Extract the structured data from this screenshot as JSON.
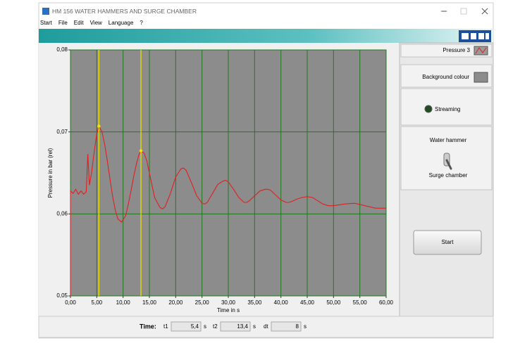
{
  "window": {
    "title": "HM 156 WATER HAMMERS AND SURGE CHAMBER"
  },
  "menu": [
    "Start",
    "File",
    "Edit",
    "View",
    "Language",
    "?"
  ],
  "chart_data": {
    "type": "line",
    "xlabel": "Time in s",
    "ylabel": "Pressure in bar (rel)",
    "x": [
      0,
      0,
      0.5,
      1,
      1.5,
      2,
      2.5,
      3,
      3.3,
      3.6,
      4,
      4.5,
      5,
      5.4,
      6,
      6.5,
      7,
      7.5,
      8,
      8.5,
      9,
      9.7,
      10.5,
      11,
      11.5,
      12,
      12.5,
      13,
      13.4,
      14,
      14.5,
      15,
      15.5,
      16,
      17,
      17.5,
      18,
      19,
      20,
      21,
      21.5,
      22,
      23,
      24,
      25,
      25.5,
      26,
      27,
      28,
      29,
      29.5,
      30,
      31,
      32,
      33,
      33.5,
      34,
      35,
      36,
      37,
      37.5,
      38,
      39,
      40,
      41,
      41.5,
      42,
      43,
      44,
      45,
      46,
      47,
      48,
      49,
      50,
      52,
      54,
      56,
      58,
      60
    ],
    "series": [
      {
        "name": "Pressure 3",
        "color": "#e02020",
        "values": [
          0.05,
          0.0628,
          0.0625,
          0.063,
          0.0624,
          0.0628,
          0.0624,
          0.0627,
          0.0673,
          0.0635,
          0.065,
          0.0675,
          0.0698,
          0.0707,
          0.07,
          0.0685,
          0.0665,
          0.0643,
          0.0622,
          0.0605,
          0.0594,
          0.059,
          0.0598,
          0.0612,
          0.0628,
          0.0645,
          0.066,
          0.0672,
          0.0677,
          0.0674,
          0.0665,
          0.065,
          0.0635,
          0.062,
          0.0608,
          0.0606,
          0.0609,
          0.0625,
          0.0645,
          0.0655,
          0.0656,
          0.0653,
          0.0638,
          0.0622,
          0.0613,
          0.0612,
          0.0614,
          0.0625,
          0.0636,
          0.064,
          0.0641,
          0.0639,
          0.063,
          0.062,
          0.0614,
          0.0614,
          0.0616,
          0.0622,
          0.0628,
          0.063,
          0.063,
          0.0629,
          0.0623,
          0.0617,
          0.0614,
          0.0614,
          0.0615,
          0.0618,
          0.062,
          0.0621,
          0.062,
          0.0616,
          0.0612,
          0.061,
          0.061,
          0.0612,
          0.0613,
          0.061,
          0.0607,
          0.0607
        ]
      }
    ],
    "xlim": [
      0,
      60
    ],
    "ylim": [
      0.05,
      0.08
    ],
    "xticks": [
      {
        "value": 0,
        "label": "0,00"
      },
      {
        "value": 5,
        "label": "5,00"
      },
      {
        "value": 10,
        "label": "10,00"
      },
      {
        "value": 15,
        "label": "15,00"
      },
      {
        "value": 20,
        "label": "20,00"
      },
      {
        "value": 25,
        "label": "25,00"
      },
      {
        "value": 30,
        "label": "30,00"
      },
      {
        "value": 35,
        "label": "35,00"
      },
      {
        "value": 40,
        "label": "40,00"
      },
      {
        "value": 45,
        "label": "45,00"
      },
      {
        "value": 50,
        "label": "50,00"
      },
      {
        "value": 55,
        "label": "55,00"
      },
      {
        "value": 60,
        "label": "60,00"
      }
    ],
    "yticks": [
      {
        "value": 0.05,
        "label": "0,05"
      },
      {
        "value": 0.06,
        "label": "0,06"
      },
      {
        "value": 0.07,
        "label": "0,07"
      },
      {
        "value": 0.08,
        "label": "0,08"
      }
    ],
    "grid": true,
    "grid_color": "#1f7a1f",
    "background": "#8c8c8c",
    "cursors": {
      "color": "#f2e600",
      "x": [
        5.4,
        13.4
      ]
    }
  },
  "panel": {
    "background": "Background colour",
    "streaming": "Streaming",
    "switch_top": "Water hammer",
    "switch_bottom": "Surge chamber",
    "button": "Start"
  },
  "status": {
    "label": "Time:",
    "fields": [
      {
        "name": "t1",
        "value": "5,4",
        "unit": "s"
      },
      {
        "name": "t2",
        "value": "13,4",
        "unit": "s"
      },
      {
        "name": "dt",
        "value": "8",
        "unit": "s"
      }
    ]
  }
}
